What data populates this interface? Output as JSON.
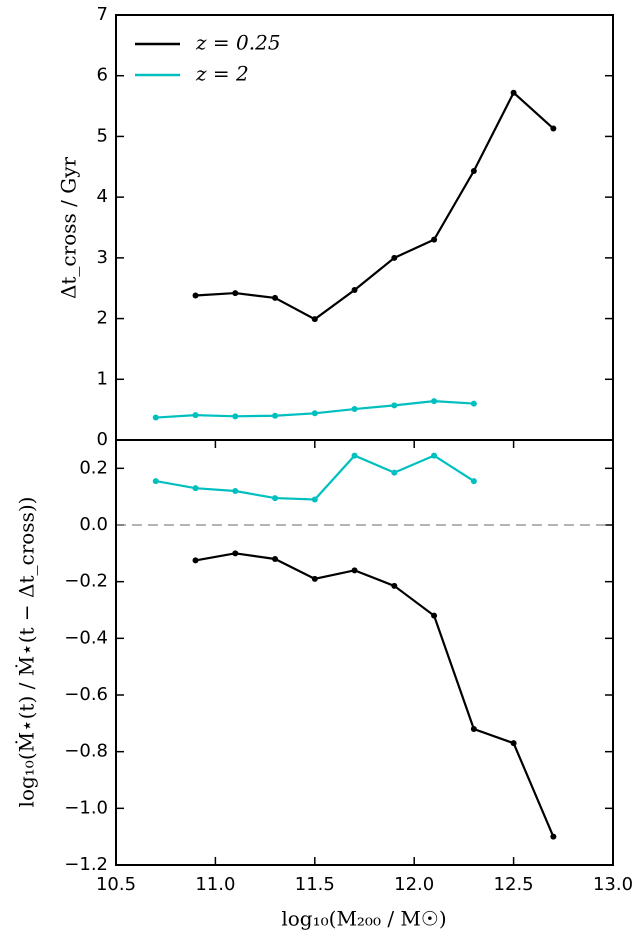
{
  "chart_data": [
    {
      "type": "line",
      "ylabel": "Δt_cross / Gyr",
      "xlim": [
        10.5,
        13.0
      ],
      "ylim": [
        0,
        7
      ],
      "yticks": [
        0,
        1,
        2,
        3,
        4,
        5,
        6,
        7
      ],
      "legend": "upper left",
      "series": [
        {
          "name": "z = 0.25",
          "color": "#000000",
          "x": [
            10.9,
            11.1,
            11.3,
            11.5,
            11.7,
            11.9,
            12.1,
            12.3,
            12.5,
            12.7
          ],
          "values": [
            2.38,
            2.42,
            2.34,
            1.99,
            2.47,
            3.0,
            3.3,
            4.43,
            5.72,
            5.13
          ]
        },
        {
          "name": "z = 2",
          "color": "#00bfbf",
          "x": [
            10.7,
            10.9,
            11.1,
            11.3,
            11.5,
            11.7,
            11.9,
            12.1,
            12.3
          ],
          "values": [
            0.37,
            0.41,
            0.39,
            0.4,
            0.44,
            0.51,
            0.57,
            0.64,
            0.6
          ]
        }
      ]
    },
    {
      "type": "line",
      "xlabel": "log₁₀(M₂₀₀ / M☉)",
      "ylabel": "log₁₀(Ṁ⋆(t) / Ṁ⋆(t − Δt_cross))",
      "xlim": [
        10.5,
        13.0
      ],
      "xticks": [
        {
          "value": 10.5,
          "label": "10.5"
        },
        {
          "value": 11.0,
          "label": "11.0"
        },
        {
          "value": 11.5,
          "label": "11.5"
        },
        {
          "value": 12.0,
          "label": "12.0"
        },
        {
          "value": 12.5,
          "label": "12.5"
        },
        {
          "value": 13.0,
          "label": "13.0"
        }
      ],
      "ylim": [
        -1.2,
        0.3
      ],
      "yticks": [
        {
          "value": -1.2,
          "label": "−1.2"
        },
        {
          "value": -1.0,
          "label": "−1.0"
        },
        {
          "value": -0.8,
          "label": "−0.8"
        },
        {
          "value": -0.6,
          "label": "−0.6"
        },
        {
          "value": -0.4,
          "label": "−0.4"
        },
        {
          "value": -0.2,
          "label": "−0.2"
        },
        {
          "value": 0.0,
          "label": "0.0"
        },
        {
          "value": 0.2,
          "label": "0.2"
        }
      ],
      "reference_line": 0,
      "series": [
        {
          "color": "#000000",
          "x": [
            10.9,
            11.1,
            11.3,
            11.5,
            11.7,
            11.9,
            12.1,
            12.3,
            12.5,
            12.7
          ],
          "values": [
            -0.125,
            -0.1,
            -0.12,
            -0.19,
            -0.16,
            -0.215,
            -0.32,
            -0.72,
            -0.77,
            -1.1
          ]
        },
        {
          "color": "#00bfbf",
          "x": [
            10.7,
            10.9,
            11.1,
            11.3,
            11.5,
            11.7,
            11.9,
            12.1,
            12.3
          ],
          "values": [
            0.155,
            0.13,
            0.12,
            0.095,
            0.09,
            0.245,
            0.185,
            0.245,
            0.155
          ]
        }
      ]
    }
  ]
}
